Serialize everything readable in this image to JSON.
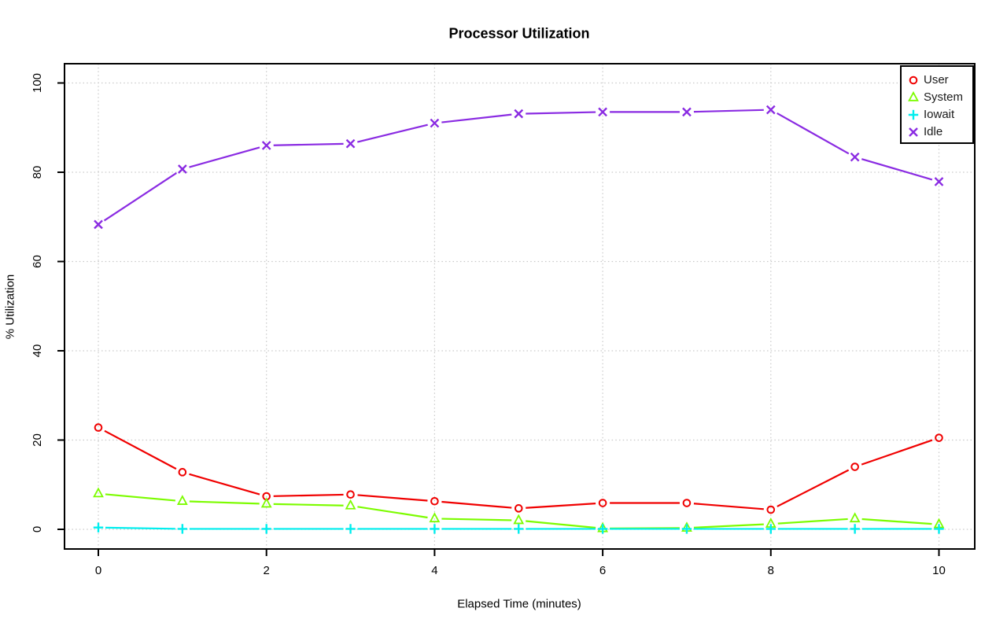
{
  "chart_data": {
    "type": "line",
    "title": "Processor Utilization",
    "xlabel": "Elapsed Time (minutes)",
    "ylabel": "% Utilization",
    "x": [
      0,
      1,
      2,
      3,
      4,
      5,
      6,
      7,
      8,
      9,
      10
    ],
    "xticks": [
      0,
      2,
      4,
      6,
      8,
      10
    ],
    "yticks": [
      0,
      20,
      40,
      60,
      80,
      100
    ],
    "xlim": [
      -0.4,
      10.4
    ],
    "ylim": [
      -4,
      104
    ],
    "grid": "dotted",
    "grid_color": "#c9c9c9",
    "axis_color": "#000000",
    "legend_position": "top-right",
    "series": [
      {
        "name": "User",
        "marker": "circle",
        "color": "#f00000",
        "values": [
          22.8,
          12.8,
          7.4,
          7.8,
          6.3,
          4.7,
          5.9,
          5.9,
          4.4,
          14.0,
          20.5
        ]
      },
      {
        "name": "System",
        "marker": "triangle",
        "color": "#7cfc00",
        "values": [
          8.0,
          6.3,
          5.7,
          5.3,
          2.4,
          2.0,
          0.2,
          0.3,
          1.2,
          2.4,
          1.1
        ]
      },
      {
        "name": "Iowait",
        "marker": "plus",
        "color": "#00eeee",
        "values": [
          0.4,
          0.1,
          0.1,
          0.1,
          0.1,
          0.1,
          0.1,
          0.1,
          0.1,
          0.1,
          0.1
        ]
      },
      {
        "name": "Idle",
        "marker": "x",
        "color": "#8a2be2",
        "values": [
          68.3,
          80.7,
          86.0,
          86.4,
          91.0,
          93.1,
          93.5,
          93.5,
          94.0,
          83.4,
          77.9
        ]
      }
    ]
  }
}
